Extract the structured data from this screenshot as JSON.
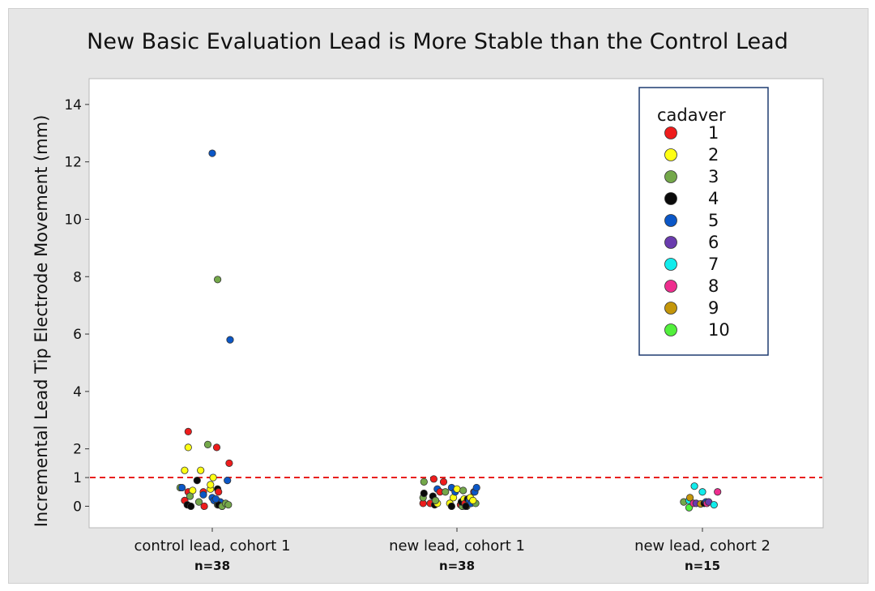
{
  "chart_data": {
    "type": "scatter",
    "title": "New Basic Evaluation Lead is More Stable than the Control Lead",
    "ylabel": "Incremental Lead Tip Electrode Movement (mm)",
    "xlabel": "",
    "yticks": [
      0,
      1,
      2,
      4,
      6,
      8,
      10,
      12,
      14
    ],
    "ylim": [
      -0.75,
      14.9
    ],
    "grid": false,
    "reference_line": {
      "y": 1,
      "color": "#e8201e",
      "style": "dashed"
    },
    "categories": [
      {
        "label": "control lead, cohort 1",
        "n_label": "n=38"
      },
      {
        "label": "new lead, cohort 1",
        "n_label": "n=38"
      },
      {
        "label": "new lead, cohort 2",
        "n_label": "n=15"
      }
    ],
    "legend": {
      "title": "cadaver",
      "placement": "top-right",
      "entries": [
        {
          "label": "1",
          "color": "#ee1c1c"
        },
        {
          "label": "2",
          "color": "#ffff14"
        },
        {
          "label": "3",
          "color": "#74a84a"
        },
        {
          "label": "4",
          "color": "#0a0a0a"
        },
        {
          "label": "5",
          "color": "#0b57c7"
        },
        {
          "label": "6",
          "color": "#6a3cae"
        },
        {
          "label": "7",
          "color": "#12ecec"
        },
        {
          "label": "8",
          "color": "#ee2e8e"
        },
        {
          "label": "9",
          "color": "#c4960a"
        },
        {
          "label": "10",
          "color": "#52f03c"
        }
      ]
    },
    "points": [
      {
        "g": 0,
        "j": -0.36,
        "y": 0.65,
        "c": 3
      },
      {
        "g": 0,
        "j": -0.34,
        "y": 0.65,
        "c": 5
      },
      {
        "g": 0,
        "j": -0.31,
        "y": 0.2,
        "c": 1
      },
      {
        "g": 0,
        "j": -0.28,
        "y": 0.05,
        "c": 4
      },
      {
        "g": 0,
        "j": -0.24,
        "y": 0.0,
        "c": 4
      },
      {
        "g": 0,
        "j": -0.27,
        "y": 0.5,
        "c": 1
      },
      {
        "g": 0,
        "j": -0.22,
        "y": 0.55,
        "c": 2
      },
      {
        "g": 0,
        "j": -0.31,
        "y": 1.25,
        "c": 2
      },
      {
        "g": 0,
        "j": -0.27,
        "y": 2.05,
        "c": 2
      },
      {
        "g": 0,
        "j": -0.27,
        "y": 2.6,
        "c": 1
      },
      {
        "g": 0,
        "j": -0.25,
        "y": 0.35,
        "c": 3
      },
      {
        "g": 0,
        "j": -0.17,
        "y": 0.9,
        "c": 4
      },
      {
        "g": 0,
        "j": -0.13,
        "y": 1.25,
        "c": 2
      },
      {
        "g": 0,
        "j": -0.15,
        "y": 0.15,
        "c": 3
      },
      {
        "g": 0,
        "j": -0.1,
        "y": 0.5,
        "c": 1
      },
      {
        "g": 0,
        "j": -0.1,
        "y": 0.4,
        "c": 5
      },
      {
        "g": 0,
        "j": -0.09,
        "y": 0.0,
        "c": 1
      },
      {
        "g": 0,
        "j": -0.05,
        "y": 2.15,
        "c": 3
      },
      {
        "g": 0,
        "j": -0.02,
        "y": 0.6,
        "c": 2
      },
      {
        "g": 0,
        "j": -0.02,
        "y": 0.75,
        "c": 2
      },
      {
        "g": 0,
        "j": 0.0,
        "y": 0.3,
        "c": 5
      },
      {
        "g": 0,
        "j": 0.02,
        "y": 0.2,
        "c": 5
      },
      {
        "g": 0,
        "j": 0.01,
        "y": 1.0,
        "c": 2
      },
      {
        "g": 0,
        "j": 0.0,
        "y": 12.3,
        "c": 5
      },
      {
        "g": 0,
        "j": 0.06,
        "y": 0.6,
        "c": 4
      },
      {
        "g": 0,
        "j": 0.07,
        "y": 0.5,
        "c": 1
      },
      {
        "g": 0,
        "j": 0.06,
        "y": 0.05,
        "c": 3
      },
      {
        "g": 0,
        "j": 0.09,
        "y": 0.15,
        "c": 5
      },
      {
        "g": 0,
        "j": 0.07,
        "y": 0.05,
        "c": 4
      },
      {
        "g": 0,
        "j": 0.11,
        "y": 0.0,
        "c": 3
      },
      {
        "g": 0,
        "j": 0.05,
        "y": 2.05,
        "c": 1
      },
      {
        "g": 0,
        "j": 0.06,
        "y": 7.9,
        "c": 3
      },
      {
        "g": 0,
        "j": 0.15,
        "y": 0.1,
        "c": 3
      },
      {
        "g": 0,
        "j": 0.18,
        "y": 0.05,
        "c": 3
      },
      {
        "g": 0,
        "j": 0.17,
        "y": 0.9,
        "c": 5
      },
      {
        "g": 0,
        "j": 0.19,
        "y": 1.5,
        "c": 1
      },
      {
        "g": 0,
        "j": 0.2,
        "y": 5.8,
        "c": 5
      },
      {
        "g": 0,
        "j": 0.04,
        "y": 0.25,
        "c": 5
      },
      {
        "g": 1,
        "j": -0.38,
        "y": 0.1,
        "c": 1
      },
      {
        "g": 1,
        "j": -0.38,
        "y": 0.3,
        "c": 3
      },
      {
        "g": 1,
        "j": -0.37,
        "y": 0.45,
        "c": 4
      },
      {
        "g": 1,
        "j": -0.37,
        "y": 0.85,
        "c": 3
      },
      {
        "g": 1,
        "j": -0.3,
        "y": 0.1,
        "c": 1
      },
      {
        "g": 1,
        "j": -0.27,
        "y": 0.35,
        "c": 4
      },
      {
        "g": 1,
        "j": -0.25,
        "y": 0.05,
        "c": 4
      },
      {
        "g": 1,
        "j": -0.22,
        "y": 0.1,
        "c": 2
      },
      {
        "g": 1,
        "j": -0.24,
        "y": 0.2,
        "c": 3
      },
      {
        "g": 1,
        "j": -0.26,
        "y": 0.95,
        "c": 1
      },
      {
        "g": 1,
        "j": -0.22,
        "y": 0.6,
        "c": 5
      },
      {
        "g": 1,
        "j": -0.19,
        "y": 0.5,
        "c": 1
      },
      {
        "g": 1,
        "j": -0.15,
        "y": 0.85,
        "c": 1
      },
      {
        "g": 1,
        "j": -0.13,
        "y": 0.5,
        "c": 3
      },
      {
        "g": 1,
        "j": -0.08,
        "y": 0.1,
        "c": 2
      },
      {
        "g": 1,
        "j": -0.06,
        "y": 0.0,
        "c": 4
      },
      {
        "g": 1,
        "j": -0.04,
        "y": 0.3,
        "c": 2
      },
      {
        "g": 1,
        "j": -0.06,
        "y": 0.65,
        "c": 5
      },
      {
        "g": 1,
        "j": -0.02,
        "y": 0.5,
        "c": 5
      },
      {
        "g": 1,
        "j": 0.0,
        "y": 0.6,
        "c": 2
      },
      {
        "g": 1,
        "j": 0.04,
        "y": 0.05,
        "c": 1
      },
      {
        "g": 1,
        "j": 0.06,
        "y": 0.0,
        "c": 3
      },
      {
        "g": 1,
        "j": 0.05,
        "y": 0.15,
        "c": 4
      },
      {
        "g": 1,
        "j": 0.07,
        "y": 0.55,
        "c": 3
      },
      {
        "g": 1,
        "j": 0.08,
        "y": 0.25,
        "c": 2
      },
      {
        "g": 1,
        "j": 0.09,
        "y": 0.1,
        "c": 1
      },
      {
        "g": 1,
        "j": 0.11,
        "y": 0.0,
        "c": 2
      },
      {
        "g": 1,
        "j": 0.12,
        "y": 0.25,
        "c": 4
      },
      {
        "g": 1,
        "j": 0.14,
        "y": 0.2,
        "c": 5
      },
      {
        "g": 1,
        "j": 0.15,
        "y": 0.3,
        "c": 2
      },
      {
        "g": 1,
        "j": 0.17,
        "y": 0.15,
        "c": 3
      },
      {
        "g": 1,
        "j": 0.16,
        "y": 0.1,
        "c": 5
      },
      {
        "g": 1,
        "j": 0.19,
        "y": 0.5,
        "c": 1
      },
      {
        "g": 1,
        "j": 0.2,
        "y": 0.5,
        "c": 5
      },
      {
        "g": 1,
        "j": 0.22,
        "y": 0.65,
        "c": 5
      },
      {
        "g": 1,
        "j": 0.21,
        "y": 0.1,
        "c": 3
      },
      {
        "g": 1,
        "j": 0.18,
        "y": 0.2,
        "c": 2
      },
      {
        "g": 1,
        "j": 0.1,
        "y": 0.0,
        "c": 4
      },
      {
        "g": 2,
        "j": -0.21,
        "y": 0.15,
        "c": 3
      },
      {
        "g": 2,
        "j": -0.15,
        "y": 0.2,
        "c": 7
      },
      {
        "g": 2,
        "j": -0.15,
        "y": -0.05,
        "c": 10
      },
      {
        "g": 2,
        "j": -0.14,
        "y": 0.3,
        "c": 9
      },
      {
        "g": 2,
        "j": -0.1,
        "y": 0.1,
        "c": 8
      },
      {
        "g": 2,
        "j": -0.09,
        "y": 0.7,
        "c": 7
      },
      {
        "g": 2,
        "j": -0.07,
        "y": 0.1,
        "c": 6
      },
      {
        "g": 2,
        "j": -0.02,
        "y": 0.08,
        "c": 9
      },
      {
        "g": 2,
        "j": 0.0,
        "y": 0.5,
        "c": 7
      },
      {
        "g": 2,
        "j": 0.02,
        "y": 0.1,
        "c": 4
      },
      {
        "g": 2,
        "j": 0.04,
        "y": 0.15,
        "c": 5
      },
      {
        "g": 2,
        "j": 0.05,
        "y": 0.1,
        "c": 8
      },
      {
        "g": 2,
        "j": 0.07,
        "y": 0.15,
        "c": 6
      },
      {
        "g": 2,
        "j": 0.13,
        "y": 0.05,
        "c": 7
      },
      {
        "g": 2,
        "j": 0.17,
        "y": 0.5,
        "c": 8
      }
    ]
  }
}
